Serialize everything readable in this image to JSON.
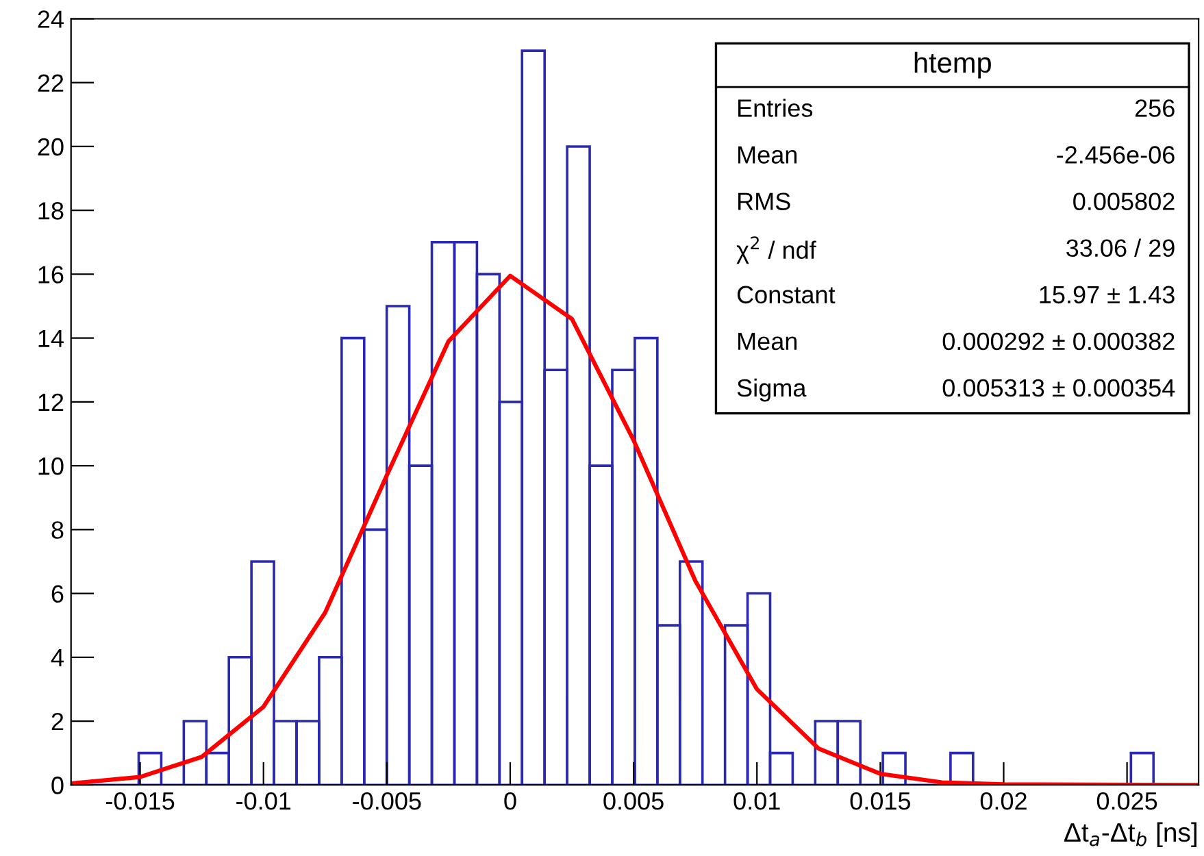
{
  "chart_data": {
    "type": "histogram",
    "xlabel": "Δt$_{a}$-Δt$_{b}$ [ns]",
    "xlim": [
      -0.0178,
      0.0279
    ],
    "ylim": [
      0,
      24
    ],
    "xticks": [
      -0.015,
      -0.01,
      -0.005,
      0,
      0.005,
      0.01,
      0.015,
      0.02,
      0.025
    ],
    "yticks": [
      0,
      2,
      4,
      6,
      8,
      10,
      12,
      14,
      16,
      18,
      20,
      22,
      24
    ],
    "grid": false,
    "legend": false,
    "series": [
      {
        "color": "#2a2ab0",
        "bins": [
          -0.0178,
          -0.016886,
          -0.015972,
          -0.015058,
          -0.014144,
          -0.01323,
          -0.012316,
          -0.011402,
          -0.010488,
          -0.009574,
          -0.00866,
          -0.007746,
          -0.006832,
          -0.005918,
          -0.005004,
          -0.00409,
          -0.003176,
          -0.002262,
          -0.001348,
          -0.000434,
          0.00048,
          0.001394,
          0.002308,
          0.003222,
          0.004136,
          0.00505,
          0.005964,
          0.006878,
          0.007792,
          0.008706,
          0.00962,
          0.010534,
          0.011448,
          0.012362,
          0.013276,
          0.01419,
          0.015104,
          0.016018,
          0.016932,
          0.017846,
          0.01876,
          0.019674,
          0.020588,
          0.021502,
          0.022416,
          0.02333,
          0.024244,
          0.025158,
          0.026072,
          0.026986,
          0.0279
        ],
        "values": [
          0,
          0,
          0,
          1,
          0,
          2,
          1,
          4,
          7,
          2,
          2,
          4,
          14,
          8,
          15,
          10,
          17,
          17,
          16,
          12,
          23,
          13,
          20,
          10,
          13,
          14,
          5,
          7,
          0,
          5,
          6,
          1,
          0,
          2,
          2,
          0,
          1,
          0,
          0,
          1,
          0,
          0,
          0,
          0,
          0,
          0,
          0,
          1,
          0,
          0
        ]
      },
      {
        "type": "line",
        "color": "#ff0000",
        "x": [
          -0.0178,
          -0.015,
          -0.0125,
          -0.01,
          -0.0075,
          -0.005,
          -0.0025,
          0,
          0.0025,
          0.005,
          0.0075,
          0.01,
          0.0125,
          0.015,
          0.0175,
          0.02,
          0.0279
        ],
        "values": [
          0.05,
          0.25,
          0.88,
          2.45,
          5.4,
          9.7,
          13.9,
          15.95,
          14.6,
          10.8,
          6.4,
          3.0,
          1.14,
          0.35,
          0.08,
          0.02,
          0
        ]
      }
    ],
    "annotations": [
      "htemp",
      "Entries",
      "256",
      "Mean",
      "-2.456e-06",
      "RMS",
      "0.005802",
      "χ$^{2}$ / ndf",
      "33.06 / 29",
      "Constant",
      "15.97 ± 1.43",
      "Mean",
      "0.000292 ± 0.000382",
      "Sigma",
      "0.005313 ± 0.000354"
    ]
  }
}
